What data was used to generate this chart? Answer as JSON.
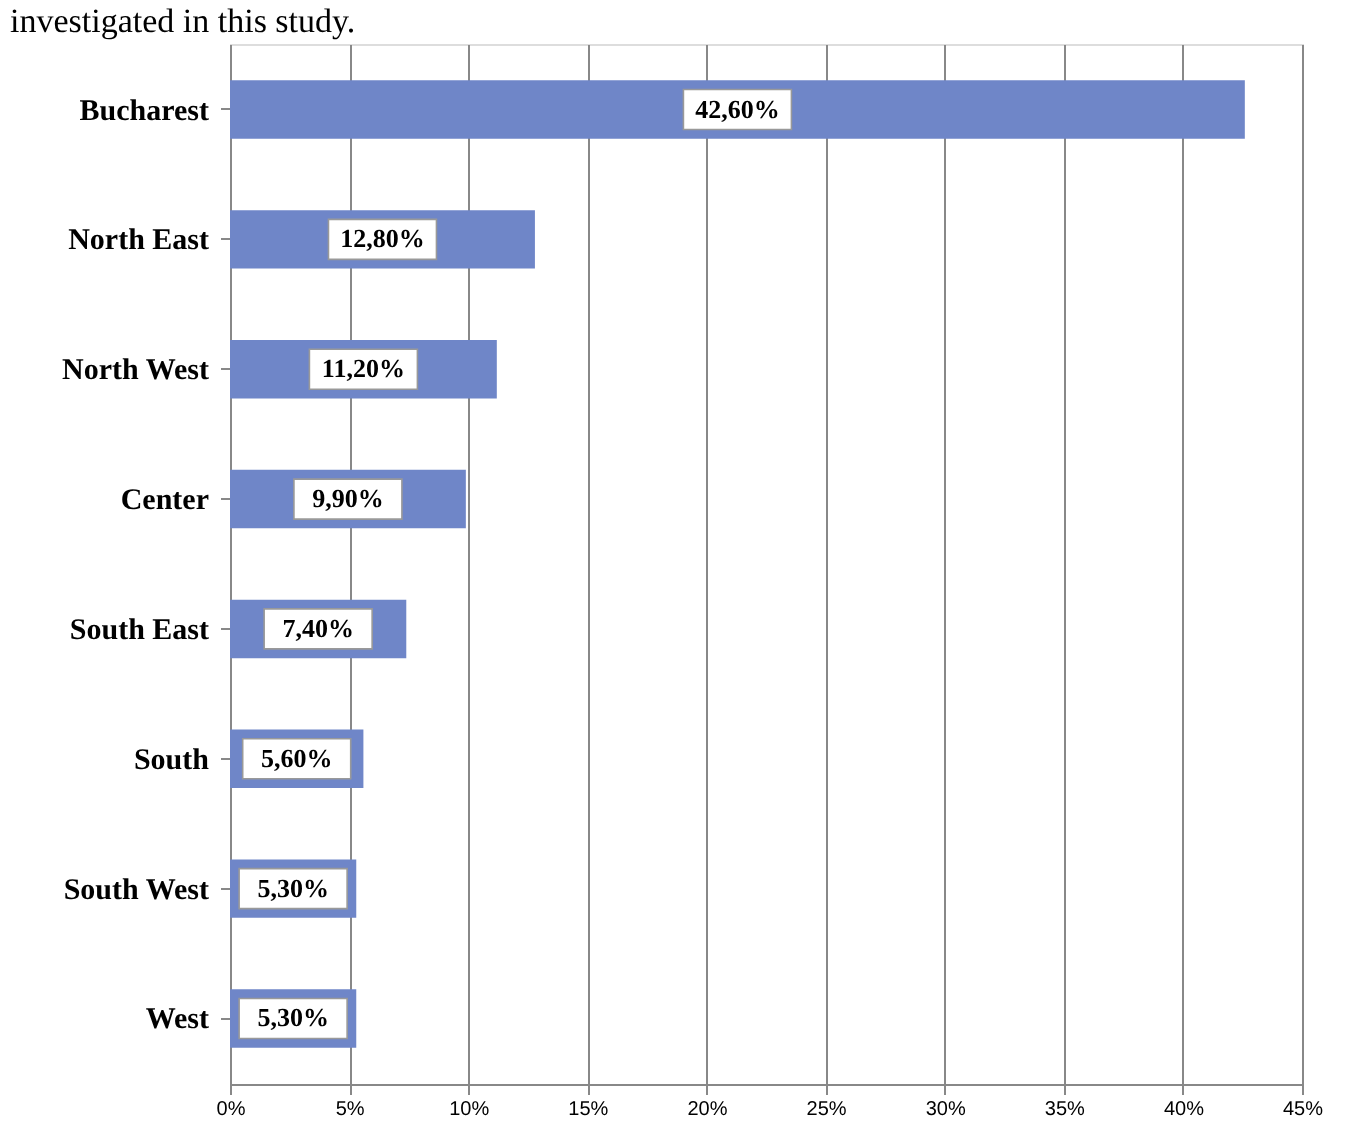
{
  "chart_data": {
    "type": "bar",
    "orientation": "horizontal",
    "annotations": [
      "investigated in this study."
    ],
    "categories": [
      "Bucharest",
      "North East",
      "North West",
      "Center",
      "South East",
      "South",
      "South West",
      "West"
    ],
    "values": [
      42.6,
      12.8,
      11.2,
      9.9,
      7.4,
      5.6,
      5.3,
      5.3
    ],
    "value_labels": [
      "42,60%",
      "12,80%",
      "11,20%",
      "9,90%",
      "7,40%",
      "5,60%",
      "5,30%",
      "5,30%"
    ],
    "color": "#6f86c8",
    "xlim": [
      0,
      45
    ],
    "xticks": [
      {
        "value": 0,
        "label": "0%"
      },
      {
        "value": 5,
        "label": "5%"
      },
      {
        "value": 10,
        "label": "10%"
      },
      {
        "value": 15,
        "label": "15%"
      },
      {
        "value": 20,
        "label": "20%"
      },
      {
        "value": 25,
        "label": "25%"
      },
      {
        "value": 30,
        "label": "30%"
      },
      {
        "value": 35,
        "label": "35%"
      },
      {
        "value": 40,
        "label": "40%"
      },
      {
        "value": 45,
        "label": "45%"
      }
    ],
    "grid": "x"
  }
}
